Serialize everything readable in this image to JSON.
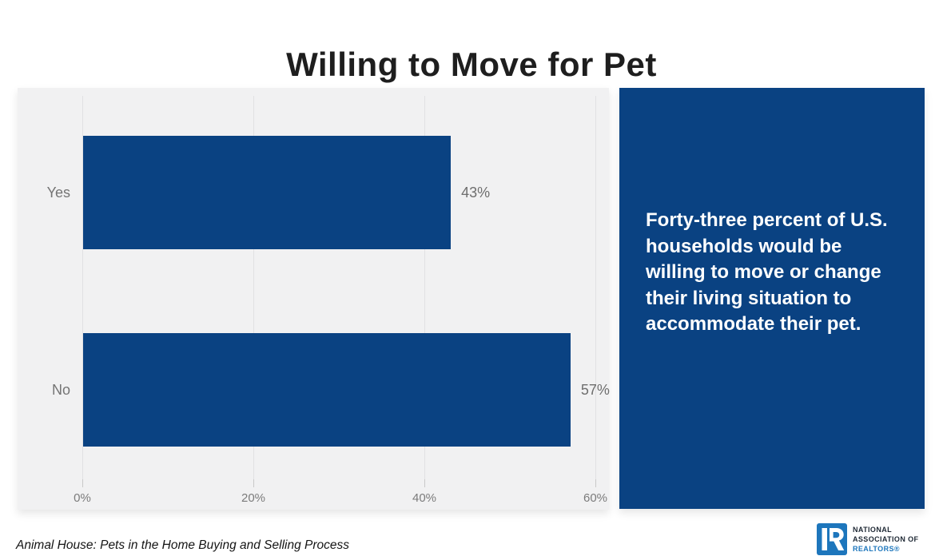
{
  "title": "Willing to Move for Pet",
  "chart_data": {
    "type": "bar",
    "orientation": "horizontal",
    "title": "Willing to Move for Pet",
    "categories": [
      "Yes",
      "No"
    ],
    "values": [
      43,
      57
    ],
    "value_labels": [
      "43%",
      "57%"
    ],
    "x_ticks": [
      "0%",
      "20%",
      "40%",
      "60%"
    ],
    "x_tick_values": [
      0,
      20,
      40,
      60
    ],
    "xlim": [
      0,
      61.5
    ],
    "grid": true,
    "legend": "none",
    "bar_color": "#0a4282",
    "plot_bg": "#f1f1f2",
    "label_color": "#747474"
  },
  "callout": {
    "text": "Forty-three percent of U.S. households would be willing to move or change their living situation to accommodate their pet.",
    "bg_color": "#0a4282",
    "text_color": "#ffffff"
  },
  "footer": {
    "source": "Animal House: Pets in the Home Buying and Selling Process",
    "logo": {
      "line1": "NATIONAL",
      "line2": "ASSOCIATION OF",
      "line3": "REALTORS®",
      "brand_blue": "#1d76bc",
      "brand_dark": "#1d2733"
    }
  }
}
